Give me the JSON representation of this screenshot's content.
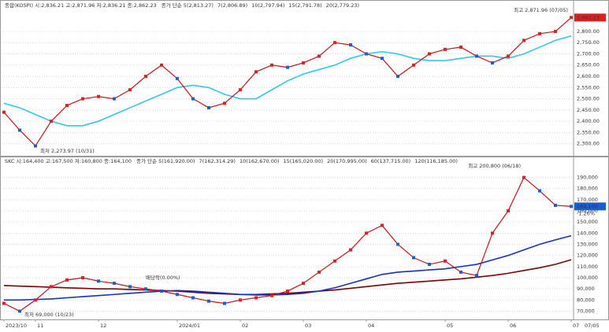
{
  "chart_data": [
    {
      "type": "line",
      "header": "종합(KOSPI) 시:2,836.21 고:2,871.96 저:2,836.21 종:2,862.23",
      "ma_labels": [
        {
          "label": "종가 단순 5(2,813.27)",
          "color": "#2e9e2e"
        },
        {
          "label": "7(2,806.89)",
          "color": "#e040c0"
        },
        {
          "label": "10(2,797.94)",
          "color": "#000000"
        },
        {
          "label": "15(2,791.78)",
          "color": "#d01010"
        },
        {
          "label": "20(2,779.23)",
          "color": "#30c8e8"
        }
      ],
      "last_label": "2,862.23",
      "high_note": "최고 2,871.96 (07/05)",
      "low_note": "최저 2,273.97 (10/31)",
      "ylim": [
        2253,
        2898
      ],
      "yticks": [
        {
          "value": 2300,
          "label": "2,300.00"
        },
        {
          "value": 2350,
          "label": "2,350.00"
        },
        {
          "value": 2400,
          "label": "2,400.00"
        },
        {
          "value": 2450,
          "label": "2,450.00"
        },
        {
          "value": 2500,
          "label": "2,500.00"
        },
        {
          "value": 2550,
          "label": "2,550.00"
        },
        {
          "value": 2600,
          "label": "2,600.00"
        },
        {
          "value": 2650,
          "label": "2,650.00"
        },
        {
          "value": 2700,
          "label": "2,700.00"
        },
        {
          "value": 2750,
          "label": "2,750.00"
        },
        {
          "value": 2800,
          "label": "2,800.00"
        }
      ],
      "grid": true,
      "series": [
        {
          "color": "#30c8e8",
          "values": [
            2480,
            2460,
            2430,
            2400,
            2380,
            2380,
            2400,
            2430,
            2460,
            2490,
            2520,
            2550,
            2560,
            2550,
            2520,
            2500,
            2500,
            2540,
            2580,
            2610,
            2630,
            2650,
            2680,
            2700,
            2710,
            2700,
            2680,
            2670,
            2670,
            2680,
            2690,
            2690,
            2680,
            2700,
            2730,
            2760,
            2780
          ]
        },
        {
          "color": "#d01010",
          "values": [
            2440,
            2360,
            2290,
            2400,
            2470,
            2500,
            2510,
            2500,
            2540,
            2600,
            2650,
            2590,
            2500,
            2460,
            2480,
            2540,
            2620,
            2650,
            2640,
            2660,
            2690,
            2750,
            2740,
            2700,
            2680,
            2600,
            2650,
            2700,
            2720,
            2730,
            2690,
            2660,
            2690,
            2760,
            2790,
            2800,
            2862
          ]
        }
      ]
    },
    {
      "type": "line",
      "header": "SKC 시:164,400 고:167,500 저:160,800 종:164,100",
      "ma_labels": [
        {
          "label": "종가 단순 5(161,920.00)",
          "color": "#2e9e2e"
        },
        {
          "label": "7(162,314.29)",
          "color": "#e040c0"
        },
        {
          "label": "10(162,670.00)",
          "color": "#000000"
        },
        {
          "label": "15(165,020.00)",
          "color": "#d01010"
        },
        {
          "label": "20(170,995.00)",
          "color": "#30c8e8"
        },
        {
          "label": "60(137,715.00)",
          "color": "#1030d0"
        },
        {
          "label": "120(116,185.00)",
          "color": "#800000"
        }
      ],
      "last_label": "164,100",
      "change_label": "-1.26%",
      "high_note": "최고 200,800 (06/18)",
      "low_note": "최저 69,000 (10/23)",
      "event_note": "배당락(0.00%)",
      "ylim": [
        64000,
        201000
      ],
      "yticks": [
        {
          "value": 70000,
          "label": "70,000"
        },
        {
          "value": 80000,
          "label": "80,000"
        },
        {
          "value": 90000,
          "label": "90,000"
        },
        {
          "value": 100000,
          "label": "100,000"
        },
        {
          "value": 110000,
          "label": "110,000"
        },
        {
          "value": 120000,
          "label": "120,000"
        },
        {
          "value": 130000,
          "label": "130,000"
        },
        {
          "value": 140000,
          "label": "140,000"
        },
        {
          "value": 150000,
          "label": "150,000"
        },
        {
          "value": 160000,
          "label": "160,000"
        },
        {
          "value": 170000,
          "label": "170,000"
        },
        {
          "value": 180000,
          "label": "180,000"
        },
        {
          "value": 190000,
          "label": "190,000"
        }
      ],
      "grid": true,
      "categories": [
        "2023/10",
        null,
        "11",
        null,
        null,
        null,
        "12",
        null,
        null,
        null,
        null,
        "2024/01",
        null,
        null,
        null,
        "02",
        null,
        null,
        null,
        "03",
        null,
        null,
        null,
        "04",
        null,
        null,
        null,
        null,
        "05",
        null,
        null,
        null,
        "06",
        null,
        null,
        null,
        "07"
      ],
      "last_date": "07/05",
      "series": [
        {
          "color": "#800000",
          "values": [
            93000,
            92500,
            92000,
            91500,
            91000,
            90500,
            90000,
            90000,
            89500,
            89000,
            88500,
            88000,
            87000,
            86000,
            85500,
            85000,
            85000,
            85500,
            86000,
            87000,
            88000,
            89000,
            90500,
            92000,
            93500,
            95000,
            96000,
            97000,
            98000,
            99000,
            100500,
            102000,
            104000,
            106500,
            109000,
            112000,
            116185
          ]
        },
        {
          "color": "#1030d0",
          "values": [
            80000,
            80000,
            80500,
            81000,
            82000,
            83000,
            84000,
            85000,
            86000,
            87000,
            88000,
            88500,
            88000,
            87000,
            86000,
            85000,
            84500,
            84500,
            85000,
            86000,
            88000,
            91000,
            95000,
            99000,
            103000,
            105000,
            106000,
            107000,
            108000,
            110000,
            112000,
            116000,
            120000,
            125000,
            130000,
            134000,
            137715
          ]
        },
        {
          "color": "#d01010",
          "values": [
            77000,
            70000,
            80000,
            92000,
            98000,
            100000,
            97000,
            95000,
            92000,
            90000,
            88000,
            85000,
            82000,
            79000,
            77000,
            80000,
            82000,
            84000,
            88000,
            95000,
            105000,
            115000,
            125000,
            140000,
            147000,
            130000,
            118000,
            112000,
            115000,
            105000,
            102000,
            140000,
            160000,
            190000,
            178000,
            165000,
            164000
          ]
        }
      ]
    }
  ]
}
